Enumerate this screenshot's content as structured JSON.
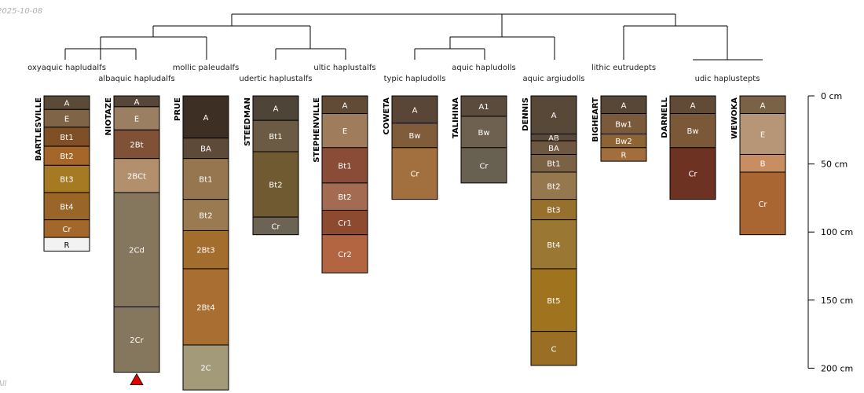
{
  "date_label": "2025-10-08",
  "footer_label": "All",
  "depth_axis": {
    "ticks": [
      0,
      50,
      100,
      150,
      200
    ],
    "unit": "cm"
  },
  "taxa": [
    {
      "label": "oxyaquic hapludalfs"
    },
    {
      "label": "albaquic hapludalfs"
    },
    {
      "label": "mollic paleudalfs"
    },
    {
      "label": "udertic haplustalfs"
    },
    {
      "label": "ultic haplustalfs"
    },
    {
      "label": "typic hapludolls"
    },
    {
      "label": "aquic hapludolls"
    },
    {
      "label": "aquic argiudolls"
    },
    {
      "label": "lithic eutrudepts"
    },
    {
      "label": "udic haplustepts"
    }
  ],
  "profiles": [
    {
      "name": "BARTLESVILLE",
      "horizons": [
        {
          "name": "A",
          "top": 0,
          "bottom": 10,
          "color": "#5c4a38"
        },
        {
          "name": "E",
          "top": 10,
          "bottom": 23,
          "color": "#806448"
        },
        {
          "name": "Bt1",
          "top": 23,
          "bottom": 37,
          "color": "#7f4f26"
        },
        {
          "name": "Bt2",
          "top": 37,
          "bottom": 51,
          "color": "#a6662a"
        },
        {
          "name": "Bt3",
          "top": 51,
          "bottom": 71,
          "color": "#a67a22"
        },
        {
          "name": "Bt4",
          "top": 71,
          "bottom": 91,
          "color": "#9a6528"
        },
        {
          "name": "Cr",
          "top": 91,
          "bottom": 104,
          "color": "#a3662b"
        },
        {
          "name": "R",
          "top": 104,
          "bottom": 114,
          "color": "#f2f2f2"
        }
      ]
    },
    {
      "name": "NIOTAZE",
      "truncated": true,
      "horizons": [
        {
          "name": "A",
          "top": 0,
          "bottom": 8,
          "color": "#574738"
        },
        {
          "name": "E",
          "top": 8,
          "bottom": 25,
          "color": "#9b7f63"
        },
        {
          "name": "2Bt",
          "top": 25,
          "bottom": 46,
          "color": "#7f5238"
        },
        {
          "name": "2BCt",
          "top": 46,
          "bottom": 71,
          "color": "#b3906d"
        },
        {
          "name": "2Cd",
          "top": 71,
          "bottom": 155,
          "color": "#85765e"
        },
        {
          "name": "2Cr",
          "top": 155,
          "bottom": 203,
          "color": "#85765e"
        }
      ]
    },
    {
      "name": "PRUE",
      "horizons": [
        {
          "name": "A",
          "top": 0,
          "bottom": 31,
          "color": "#3d2f24"
        },
        {
          "name": "BA",
          "top": 31,
          "bottom": 46,
          "color": "#5e4a39"
        },
        {
          "name": "Bt1",
          "top": 46,
          "bottom": 76,
          "color": "#96764e"
        },
        {
          "name": "Bt2",
          "top": 76,
          "bottom": 99,
          "color": "#9a7a50"
        },
        {
          "name": "2Bt3",
          "top": 99,
          "bottom": 127,
          "color": "#a36d2e"
        },
        {
          "name": "2Bt4",
          "top": 127,
          "bottom": 183,
          "color": "#a96f32"
        },
        {
          "name": "2C",
          "top": 183,
          "bottom": 216,
          "color": "#a39a7a"
        }
      ]
    },
    {
      "name": "STEEDMAN",
      "horizons": [
        {
          "name": "A",
          "top": 0,
          "bottom": 18,
          "color": "#4f4438"
        },
        {
          "name": "Bt1",
          "top": 18,
          "bottom": 41,
          "color": "#6b5a44"
        },
        {
          "name": "Bt2",
          "top": 41,
          "bottom": 89,
          "color": "#705a32"
        },
        {
          "name": "Cr",
          "top": 89,
          "bottom": 102,
          "color": "#6b6454"
        }
      ]
    },
    {
      "name": "STEPHENVILLE",
      "horizons": [
        {
          "name": "A",
          "top": 0,
          "bottom": 13,
          "color": "#614a36"
        },
        {
          "name": "E",
          "top": 13,
          "bottom": 38,
          "color": "#9e7c5c"
        },
        {
          "name": "Bt1",
          "top": 38,
          "bottom": 64,
          "color": "#8a4c36"
        },
        {
          "name": "Bt2",
          "top": 64,
          "bottom": 84,
          "color": "#a36c52"
        },
        {
          "name": "Cr1",
          "top": 84,
          "bottom": 102,
          "color": "#8e4a30"
        },
        {
          "name": "Cr2",
          "top": 102,
          "bottom": 130,
          "color": "#b36440"
        }
      ]
    },
    {
      "name": "COWETA",
      "horizons": [
        {
          "name": "A",
          "top": 0,
          "bottom": 20,
          "color": "#5a4636"
        },
        {
          "name": "Bw",
          "top": 20,
          "bottom": 38,
          "color": "#815c3a"
        },
        {
          "name": "Cr",
          "top": 38,
          "bottom": 76,
          "color": "#a1703e"
        }
      ]
    },
    {
      "name": "TALIHINA",
      "horizons": [
        {
          "name": "A1",
          "top": 0,
          "bottom": 15,
          "color": "#5a4b3c"
        },
        {
          "name": "Bw",
          "top": 15,
          "bottom": 38,
          "color": "#6e6150"
        },
        {
          "name": "Cr",
          "top": 38,
          "bottom": 64,
          "color": "#686050"
        }
      ]
    },
    {
      "name": "DENNIS",
      "horizons": [
        {
          "name": "A",
          "top": 0,
          "bottom": 28,
          "color": "#584838"
        },
        {
          "name": "AB",
          "top": 28,
          "bottom": 33,
          "color": "#5a4838"
        },
        {
          "name": "BA",
          "top": 33,
          "bottom": 43,
          "color": "#6e5842"
        },
        {
          "name": "Bt1",
          "top": 43,
          "bottom": 56,
          "color": "#7c6244"
        },
        {
          "name": "Bt2",
          "top": 56,
          "bottom": 76,
          "color": "#96784e"
        },
        {
          "name": "Bt3",
          "top": 76,
          "bottom": 91,
          "color": "#98702e"
        },
        {
          "name": "Bt4",
          "top": 91,
          "bottom": 127,
          "color": "#9a7834"
        },
        {
          "name": "Bt5",
          "top": 127,
          "bottom": 173,
          "color": "#a0741e"
        },
        {
          "name": "C",
          "top": 173,
          "bottom": 198,
          "color": "#9a6e24"
        }
      ]
    },
    {
      "name": "BIGHEART",
      "horizons": [
        {
          "name": "A",
          "top": 0,
          "bottom": 13,
          "color": "#584636"
        },
        {
          "name": "Bw1",
          "top": 13,
          "bottom": 28,
          "color": "#7a5a3a"
        },
        {
          "name": "Bw2",
          "top": 28,
          "bottom": 38,
          "color": "#8e6434"
        },
        {
          "name": "R",
          "top": 38,
          "bottom": 48,
          "color": "#a36e3e"
        }
      ]
    },
    {
      "name": "DARNELL",
      "horizons": [
        {
          "name": "A",
          "top": 0,
          "bottom": 13,
          "color": "#614a36"
        },
        {
          "name": "Bw",
          "top": 13,
          "bottom": 38,
          "color": "#7a5838"
        },
        {
          "name": "Cr",
          "top": 38,
          "bottom": 76,
          "color": "#6e3222"
        }
      ]
    },
    {
      "name": "WEWOKA",
      "horizons": [
        {
          "name": "A",
          "top": 0,
          "bottom": 13,
          "color": "#7a6246"
        },
        {
          "name": "E",
          "top": 13,
          "bottom": 43,
          "color": "#b69676"
        },
        {
          "name": "B",
          "top": 43,
          "bottom": 56,
          "color": "#c88e62"
        },
        {
          "name": "Cr",
          "top": 56,
          "bottom": 102,
          "color": "#aa6632"
        }
      ]
    }
  ]
}
